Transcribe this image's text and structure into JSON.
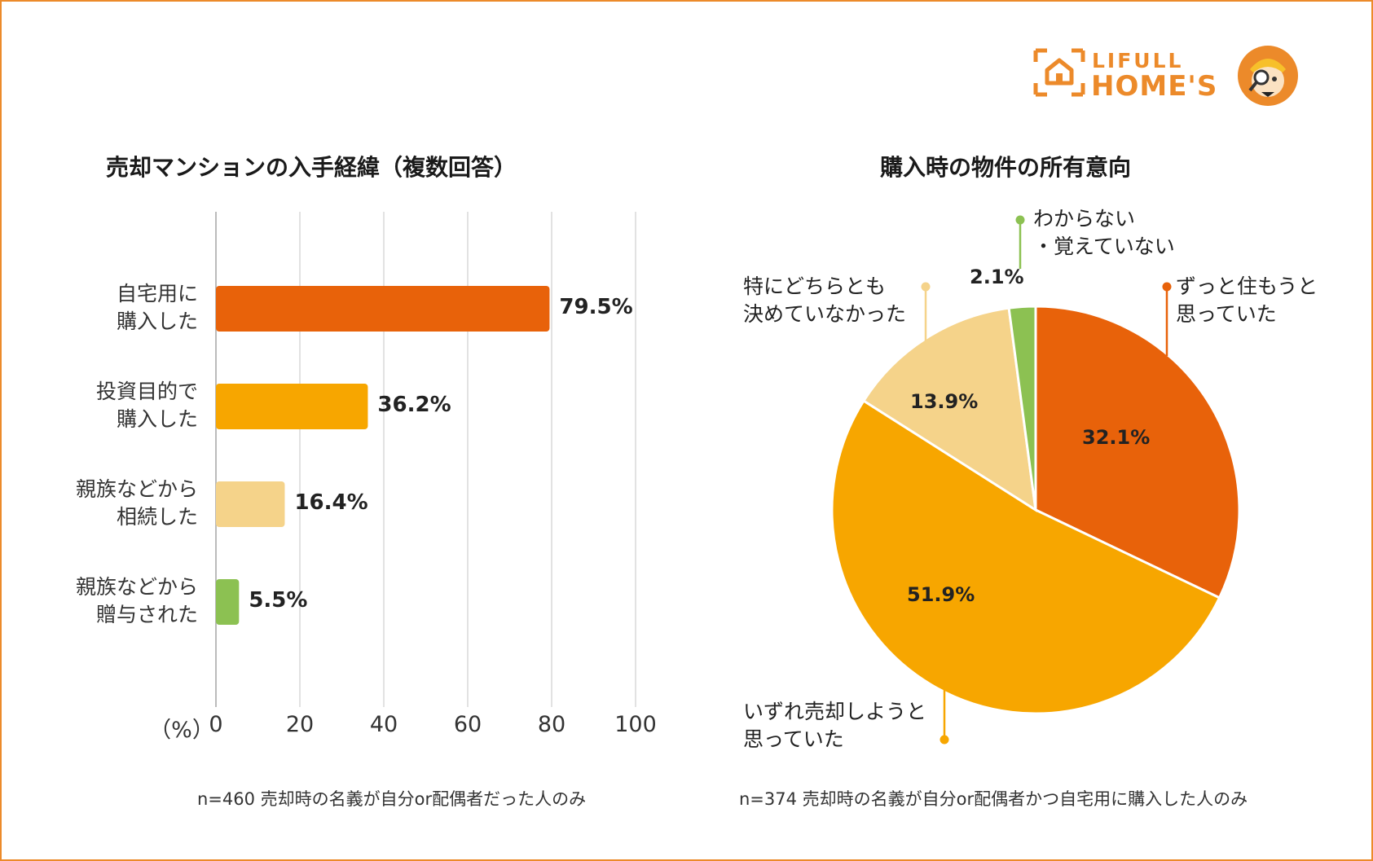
{
  "brand": {
    "line1": "LIFULL",
    "line2": "HOME'S"
  },
  "left_footnote": "n=460 売却時の名義が自分or配偶者だった人のみ",
  "right_footnote": "n=374 売却時の名義が自分or配偶者かつ自宅用に購入した人のみ",
  "chart_data": [
    {
      "type": "bar",
      "orientation": "horizontal",
      "title": "売却マンションの入手経緯（複数回答）",
      "categories": [
        [
          "自宅用に",
          "購入した"
        ],
        [
          "投資目的で",
          "購入した"
        ],
        [
          "親族などから",
          "相続した"
        ],
        [
          "親族などから",
          "贈与された"
        ]
      ],
      "values": [
        79.5,
        36.2,
        16.4,
        5.5
      ],
      "value_labels": [
        "79.5%",
        "36.2%",
        "16.4%",
        "5.5%"
      ],
      "colors": [
        "#e8620a",
        "#f7a600",
        "#f5d38a",
        "#8cc152"
      ],
      "xlim": [
        0,
        100
      ],
      "xticks": [
        "0",
        "20",
        "40",
        "60",
        "80",
        "100"
      ],
      "xunit": "（%）",
      "grid": true
    },
    {
      "type": "pie",
      "title": "購入時の物件の所有意向",
      "slices": [
        {
          "label": [
            "ずっと住もうと",
            "思っていた"
          ],
          "value": 32.1,
          "value_label": "32.1%",
          "color": "#e8620a"
        },
        {
          "label": [
            "いずれ売却しようと",
            "思っていた"
          ],
          "value": 51.9,
          "value_label": "51.9%",
          "color": "#f7a600"
        },
        {
          "label": [
            "特にどちらとも",
            "決めていなかった"
          ],
          "value": 13.9,
          "value_label": "13.9%",
          "color": "#f5d38a"
        },
        {
          "label": [
            "わからない",
            "・覚えていない"
          ],
          "value": 2.1,
          "value_label": "2.1%",
          "color": "#8cc152"
        }
      ]
    }
  ]
}
